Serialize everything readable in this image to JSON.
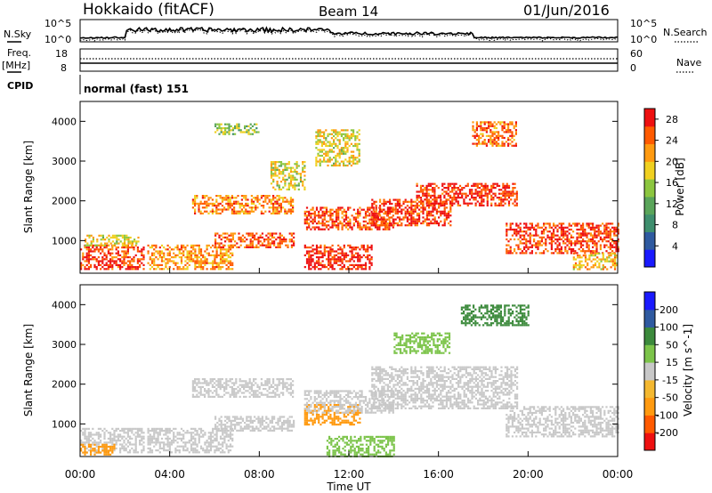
{
  "header": {
    "station": "Hokkaido (fitACF)",
    "beam": "Beam 14",
    "date": "01/Jun/2016"
  },
  "top_panel": {
    "left_label": "N.Sky",
    "right_label": "N.Search",
    "left_ticks": [
      "10^5",
      "10^0"
    ],
    "right_ticks": [
      "10^5",
      "10^0"
    ]
  },
  "freq_panel": {
    "left_label_1": "Freq.",
    "left_label_2": "[MHz]",
    "right_label": "Nave",
    "left_ticks": [
      "18",
      "8"
    ],
    "right_ticks": [
      "60",
      "0"
    ]
  },
  "cpid": {
    "label": "CPID",
    "value": "normal (fast) 151"
  },
  "colors": {
    "power_scale": [
      "#1a1aff",
      "#2f5aa0",
      "#3f8f6e",
      "#5aa55a",
      "#8cc63f",
      "#f0d020",
      "#ff9a10",
      "#ff5a00",
      "#ee1010"
    ],
    "velocity_scale": [
      "#ee1010",
      "#ff5a00",
      "#ff9a10",
      "#f4b830",
      "#c8c8c8",
      "#7cc44a",
      "#3c8a3c",
      "#2f5aa0",
      "#1a1aff"
    ],
    "grid_color": "#000000"
  },
  "chart_data": [
    {
      "type": "heatmap",
      "title": "",
      "xlabel": "Time UT",
      "ylabel": "Slant Range [km]",
      "xlim": [
        0,
        24
      ],
      "ylim": [
        180,
        4500
      ],
      "x_ticks": [
        "00:00",
        "04:00",
        "08:00",
        "12:00",
        "16:00",
        "20:00",
        "00:00"
      ],
      "y_ticks": [
        1000,
        2000,
        3000,
        4000
      ],
      "colorbar": {
        "label": "Power [dB]",
        "ticks": [
          4,
          8,
          12,
          16,
          20,
          24,
          28
        ],
        "range": [
          0,
          30
        ]
      },
      "regions": [
        {
          "t0": 0.0,
          "t1": 2.8,
          "r0": 300,
          "r1": 900,
          "level": 27
        },
        {
          "t0": 0.2,
          "t1": 2.6,
          "r0": 900,
          "r1": 1150,
          "level": 18
        },
        {
          "t0": 3.0,
          "t1": 6.8,
          "r0": 300,
          "r1": 900,
          "level": 22
        },
        {
          "t0": 5.0,
          "t1": 9.5,
          "r0": 1700,
          "r1": 2150,
          "level": 23
        },
        {
          "t0": 6.0,
          "t1": 9.5,
          "r0": 850,
          "r1": 1200,
          "level": 25
        },
        {
          "t0": 6.0,
          "t1": 8.0,
          "r0": 3700,
          "r1": 3950,
          "level": 14
        },
        {
          "t0": 8.5,
          "t1": 10.0,
          "r0": 2300,
          "r1": 3000,
          "level": 17
        },
        {
          "t0": 10.0,
          "t1": 13.0,
          "r0": 300,
          "r1": 900,
          "level": 28
        },
        {
          "t0": 10.0,
          "t1": 14.0,
          "r0": 1300,
          "r1": 1850,
          "level": 26
        },
        {
          "t0": 10.5,
          "t1": 12.5,
          "r0": 2900,
          "r1": 3800,
          "level": 18
        },
        {
          "t0": 13.0,
          "t1": 16.5,
          "r0": 1400,
          "r1": 2050,
          "level": 27
        },
        {
          "t0": 15.0,
          "t1": 19.5,
          "r0": 1900,
          "r1": 2450,
          "level": 28
        },
        {
          "t0": 17.5,
          "t1": 19.5,
          "r0": 3400,
          "r1": 4000,
          "level": 24
        },
        {
          "t0": 19.0,
          "t1": 24.0,
          "r0": 700,
          "r1": 1450,
          "level": 27
        },
        {
          "t0": 22.0,
          "t1": 24.0,
          "r0": 300,
          "r1": 700,
          "level": 20
        }
      ]
    },
    {
      "type": "heatmap",
      "title": "",
      "xlabel": "Time UT",
      "ylabel": "Slant Range [km]",
      "xlim": [
        0,
        24
      ],
      "ylim": [
        180,
        4500
      ],
      "x_ticks": [
        "00:00",
        "04:00",
        "08:00",
        "12:00",
        "16:00",
        "20:00",
        "00:00"
      ],
      "y_ticks": [
        1000,
        2000,
        3000,
        4000
      ],
      "colorbar": {
        "label": "Velocity [m s^-1]",
        "ticks": [
          200,
          100,
          50,
          15,
          -15,
          -50,
          -100,
          -200
        ]
      },
      "regions": [
        {
          "t0": 0.0,
          "t1": 2.8,
          "r0": 300,
          "r1": 900,
          "level": 0
        },
        {
          "t0": 0.0,
          "t1": 1.5,
          "r0": 250,
          "r1": 500,
          "level": -60
        },
        {
          "t0": 3.0,
          "t1": 6.8,
          "r0": 300,
          "r1": 900,
          "level": 0
        },
        {
          "t0": 5.0,
          "t1": 9.5,
          "r0": 1700,
          "r1": 2150,
          "level": 0
        },
        {
          "t0": 6.0,
          "t1": 9.5,
          "r0": 850,
          "r1": 1200,
          "level": 0
        },
        {
          "t0": 10.0,
          "t1": 12.5,
          "r0": 1000,
          "r1": 1500,
          "level": -80
        },
        {
          "t0": 11.0,
          "t1": 14.0,
          "r0": 200,
          "r1": 700,
          "level": 40
        },
        {
          "t0": 10.0,
          "t1": 14.0,
          "r0": 1300,
          "r1": 1850,
          "level": 0
        },
        {
          "t0": 13.0,
          "t1": 19.5,
          "r0": 1400,
          "r1": 2450,
          "level": 0
        },
        {
          "t0": 17.0,
          "t1": 20.0,
          "r0": 3500,
          "r1": 4000,
          "level": 60
        },
        {
          "t0": 14.0,
          "t1": 16.5,
          "r0": 2800,
          "r1": 3300,
          "level": 30
        },
        {
          "t0": 19.0,
          "t1": 24.0,
          "r0": 700,
          "r1": 1450,
          "level": 0
        }
      ]
    }
  ]
}
